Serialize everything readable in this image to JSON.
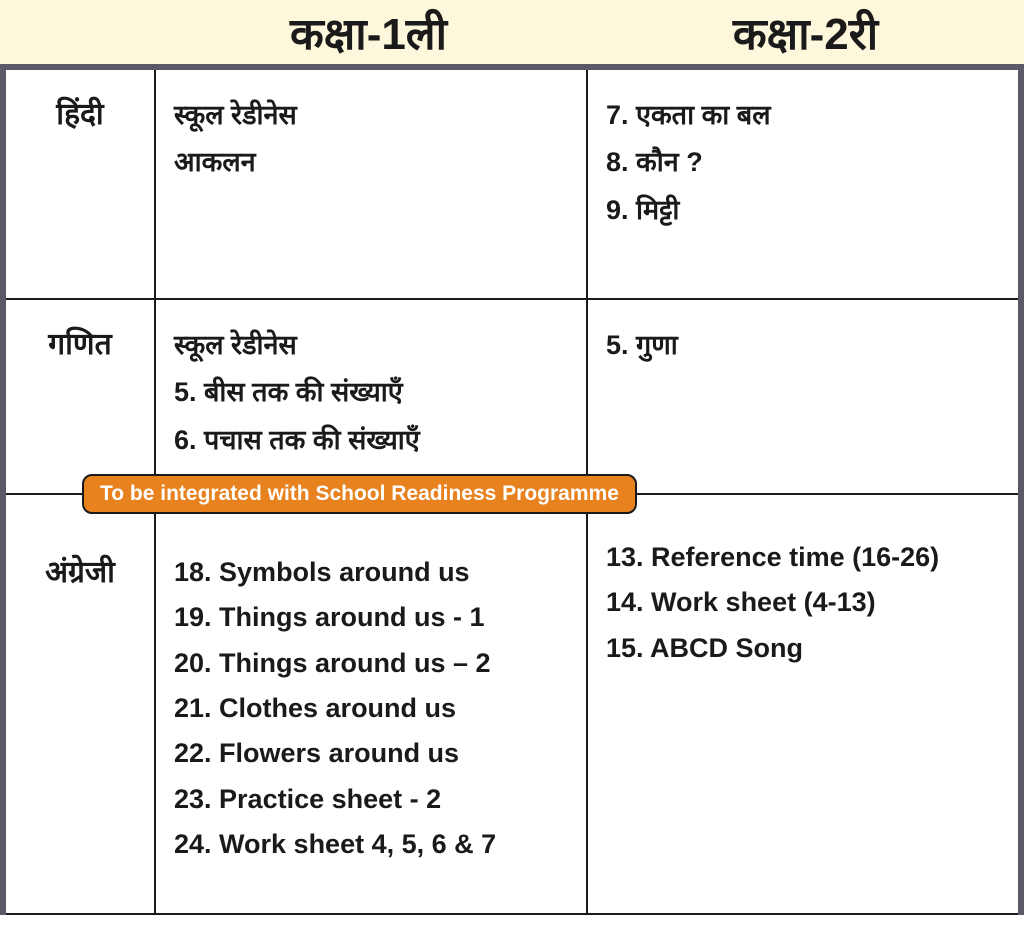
{
  "headers": {
    "class1": "कक्षा-1ली",
    "class2": "कक्षा-2री"
  },
  "badge": "To be integrated with School Readiness Programme",
  "rows": [
    {
      "subject": "हिंदी",
      "class1": [
        "स्कूल रेडीनेस",
        "आकलन"
      ],
      "class2": [
        "7. एकता का बल",
        "8. कौन ?",
        "9. मिट्टी"
      ]
    },
    {
      "subject": "गणित",
      "class1": [
        "स्कूल रेडीनेस",
        "5. बीस तक की संख्याएँ",
        "6. पचास तक की संख्याएँ"
      ],
      "class2": [
        "5. गुणा"
      ]
    },
    {
      "subject": "अंग्रेजी",
      "class1": [
        "18. Symbols around us",
        "19. Things around us - 1",
        "20. Things around us – 2",
        "21. Clothes around us",
        "22. Flowers around us",
        "23. Practice sheet - 2",
        "24. Work sheet 4, 5, 6 & 7"
      ],
      "class2": [
        "13. Reference time (16-26)",
        "14. Work sheet (4-13)",
        "15. ABCD Song"
      ]
    }
  ],
  "colors": {
    "header_bg": "#fdf7db",
    "border_outer": "#5c5a68",
    "border_inner": "#1a1a1a",
    "badge_bg": "#e8821e",
    "badge_text": "#ffffff",
    "text": "#1a1a1a"
  }
}
